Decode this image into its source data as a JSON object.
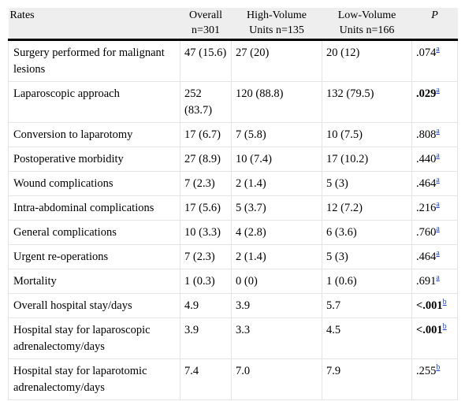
{
  "table": {
    "headers": [
      {
        "lines": [
          "Rates"
        ]
      },
      {
        "lines": [
          "Overall",
          "n=301"
        ]
      },
      {
        "lines": [
          "High-Volume",
          "Units n=135"
        ]
      },
      {
        "lines": [
          "Low-Volume",
          "Units n=166"
        ]
      },
      {
        "lines": [
          "P"
        ]
      }
    ],
    "rows": [
      {
        "label": "Surgery performed for malignant lesions",
        "overall": "47 (15.6)",
        "high": "27 (20)",
        "low": "20 (12)",
        "p": ".074",
        "sup": "a",
        "bold": false
      },
      {
        "label": "Laparoscopic approach",
        "overall": "252 (83.7)",
        "high": "120 (88.8)",
        "low": "132 (79.5)",
        "p": ".029",
        "sup": "a",
        "bold": true
      },
      {
        "label": "Conversion to laparotomy",
        "overall": "17 (6.7)",
        "high": "7 (5.8)",
        "low": "10 (7.5)",
        "p": ".808",
        "sup": "a",
        "bold": false
      },
      {
        "label": "Postoperative morbidity",
        "overall": "27 (8.9)",
        "high": "10 (7.4)",
        "low": "17 (10.2)",
        "p": ".440",
        "sup": "a",
        "bold": false
      },
      {
        "label": "Wound complications",
        "overall": "7 (2.3)",
        "high": "2 (1.4)",
        "low": "5 (3)",
        "p": ".464",
        "sup": "a",
        "bold": false
      },
      {
        "label": "Intra-abdominal complications",
        "overall": "17 (5.6)",
        "high": "5 (3.7)",
        "low": "12 (7.2)",
        "p": ".216",
        "sup": "a",
        "bold": false
      },
      {
        "label": "General complications",
        "overall": "10 (3.3)",
        "high": "4 (2.8)",
        "low": "6 (3.6)",
        "p": ".760",
        "sup": "a",
        "bold": false
      },
      {
        "label": "Urgent re-operations",
        "overall": "7 (2.3)",
        "high": "2 (1.4)",
        "low": "5 (3)",
        "p": ".464",
        "sup": "a",
        "bold": false
      },
      {
        "label": "Mortality",
        "overall": "1 (0.3)",
        "high": "0 (0)",
        "low": "1 (0.6)",
        "p": ".691",
        "sup": "a",
        "bold": false
      },
      {
        "label": "Overall hospital stay/days",
        "overall": "4.9",
        "high": "3.9",
        "low": "5.7",
        "p": "<.001",
        "sup": "b",
        "bold": true
      },
      {
        "label": "Hospital stay for laparoscopic adrenalectomy/days",
        "overall": "3.9",
        "high": "3.3",
        "low": "4.5",
        "p": "<.001",
        "sup": "b",
        "bold": true
      },
      {
        "label": "Hospital stay for laparotomic adrenalectomy/days",
        "overall": "7.4",
        "high": "7.0",
        "low": "7.9",
        "p": ".255",
        "sup": "b",
        "bold": false
      }
    ]
  },
  "colors": {
    "header_bg": "#eeeeee",
    "rule": "#000000",
    "cell_border": "#e4e4e4",
    "link": "#1a47c2"
  }
}
